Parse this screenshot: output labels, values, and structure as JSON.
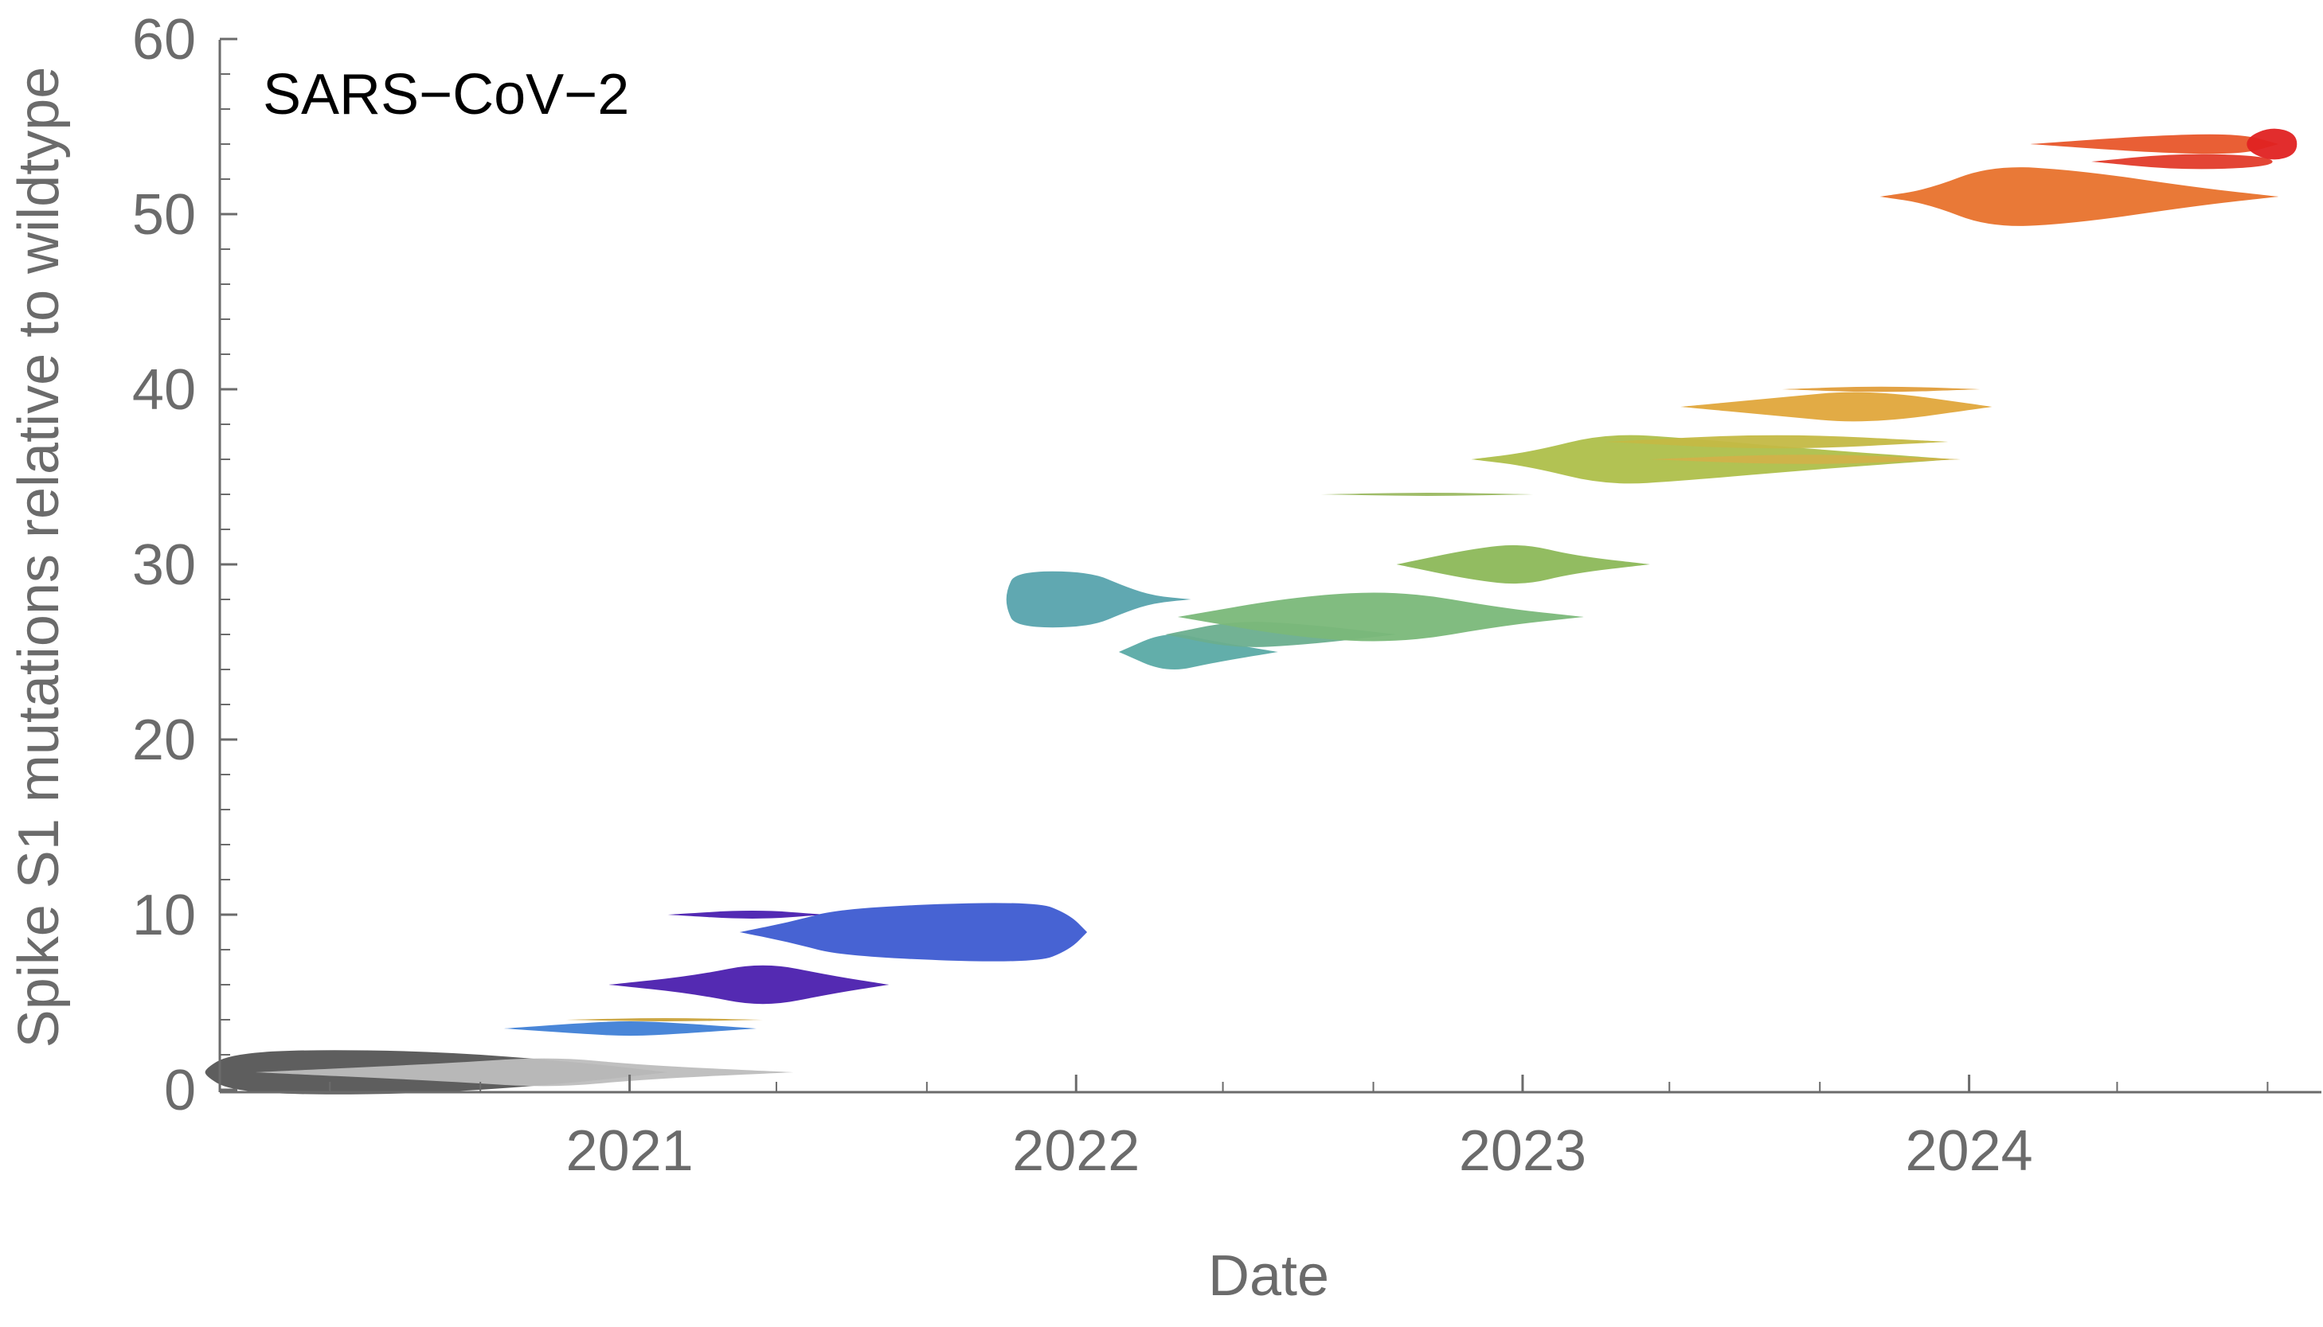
{
  "chart_data": {
    "type": "area",
    "title": "SARS−CoV−2",
    "xlabel": "Date",
    "ylabel": "Spike S1 mutations relative to wildtype",
    "xlim": [
      "2020-02-01",
      "2024-10-15"
    ],
    "ylim": [
      0,
      60
    ],
    "x_ticks": [
      "2021",
      "2022",
      "2023",
      "2024"
    ],
    "y_ticks": [
      0,
      10,
      20,
      30,
      40,
      50,
      60
    ],
    "x_minor_tick_months": 4,
    "y_minor_step": 2,
    "grid": false,
    "legend": "none",
    "series": [
      {
        "start": "2020-01-20",
        "end": "2021-02-01",
        "y": 1,
        "color": "#555555",
        "points": [
          [
            0,
            0.2
          ],
          [
            0.05,
            1.0
          ],
          [
            0.2,
            1.3
          ],
          [
            0.5,
            1.2
          ],
          [
            0.8,
            0.6
          ],
          [
            1,
            0
          ]
        ]
      },
      {
        "start": "2020-03-01",
        "end": "2021-05-15",
        "y": 1,
        "color": "#bdbdbd",
        "points": [
          [
            0,
            0
          ],
          [
            0.35,
            0.5
          ],
          [
            0.55,
            0.9
          ],
          [
            0.72,
            0.4
          ],
          [
            1,
            0
          ]
        ]
      },
      {
        "start": "2020-09-20",
        "end": "2021-04-15",
        "y": 3.5,
        "color": "#3f7fd6",
        "points": [
          [
            0,
            0
          ],
          [
            0.3,
            0.3
          ],
          [
            0.5,
            0.45
          ],
          [
            0.7,
            0.3
          ],
          [
            1,
            0
          ]
        ]
      },
      {
        "start": "2020-11-10",
        "end": "2021-04-20",
        "y": 4,
        "color": "#c9a23a",
        "points": [
          [
            0,
            0
          ],
          [
            0.5,
            0.12
          ],
          [
            1,
            0
          ]
        ]
      },
      {
        "start": "2020-12-15",
        "end": "2021-08-01",
        "y": 6,
        "color": "#4b1fae",
        "points": [
          [
            0,
            0
          ],
          [
            0.3,
            0.5
          ],
          [
            0.55,
            1.3
          ],
          [
            0.8,
            0.5
          ],
          [
            1,
            0
          ]
        ]
      },
      {
        "start": "2021-02-01",
        "end": "2021-06-10",
        "y": 10,
        "color": "#4a1fb0",
        "points": [
          [
            0,
            0
          ],
          [
            0.55,
            0.3
          ],
          [
            1,
            0
          ]
        ]
      },
      {
        "start": "2021-04-01",
        "end": "2022-01-10",
        "y": 9,
        "color": "#3d5bd1",
        "points": [
          [
            0,
            0
          ],
          [
            0.15,
            0.6
          ],
          [
            0.3,
            1.4
          ],
          [
            0.85,
            1.8
          ],
          [
            0.95,
            1.0
          ],
          [
            1,
            0
          ]
        ]
      },
      {
        "start": "2021-11-05",
        "end": "2022-04-05",
        "y": 28,
        "color": "#57a3ad",
        "points": [
          [
            0,
            0.5
          ],
          [
            0.05,
            1.6
          ],
          [
            0.45,
            1.6
          ],
          [
            0.65,
            0.7
          ],
          [
            0.8,
            0.2
          ],
          [
            1,
            0
          ]
        ]
      },
      {
        "start": "2022-02-05",
        "end": "2022-06-15",
        "y": 25,
        "color": "#5aaaa5",
        "points": [
          [
            0,
            0
          ],
          [
            0.3,
            1.2
          ],
          [
            0.6,
            0.6
          ],
          [
            1,
            0
          ]
        ]
      },
      {
        "start": "2022-03-15",
        "end": "2022-09-20",
        "y": 26,
        "color": "#6aae8e",
        "points": [
          [
            0,
            0
          ],
          [
            0.3,
            0.8
          ],
          [
            0.6,
            0.6
          ],
          [
            1,
            0
          ]
        ]
      },
      {
        "start": "2022-03-25",
        "end": "2023-02-20",
        "y": 27,
        "color": "#7ab879",
        "points": [
          [
            0,
            0
          ],
          [
            0.3,
            1.2
          ],
          [
            0.55,
            1.5
          ],
          [
            0.8,
            0.5
          ],
          [
            1,
            0
          ]
        ]
      },
      {
        "start": "2022-09-20",
        "end": "2023-04-15",
        "y": 30,
        "color": "#8cb858",
        "points": [
          [
            0,
            0
          ],
          [
            0.3,
            0.9
          ],
          [
            0.5,
            1.2
          ],
          [
            0.7,
            0.5
          ],
          [
            1,
            0
          ]
        ]
      },
      {
        "start": "2022-07-20",
        "end": "2023-01-10",
        "y": 34,
        "color": "#9ab860",
        "points": [
          [
            0,
            0
          ],
          [
            0.5,
            0.12
          ],
          [
            1,
            0
          ]
        ]
      },
      {
        "start": "2022-11-20",
        "end": "2023-12-20",
        "y": 36,
        "color": "#aebf4a",
        "points": [
          [
            0,
            0
          ],
          [
            0.12,
            0.4
          ],
          [
            0.28,
            1.5
          ],
          [
            0.45,
            1.2
          ],
          [
            0.7,
            0.6
          ],
          [
            1,
            0
          ]
        ]
      },
      {
        "start": "2023-03-10",
        "end": "2023-12-15",
        "y": 37,
        "color": "#c4b945",
        "points": [
          [
            0,
            0
          ],
          [
            0.5,
            0.5
          ],
          [
            1,
            0
          ]
        ]
      },
      {
        "start": "2023-04-15",
        "end": "2023-12-25",
        "y": 36,
        "color": "#d1b24a",
        "points": [
          [
            0,
            0
          ],
          [
            0.5,
            0.35
          ],
          [
            1,
            0
          ]
        ]
      },
      {
        "start": "2023-05-10",
        "end": "2024-01-20",
        "y": 39,
        "color": "#e0a63b",
        "points": [
          [
            0,
            0
          ],
          [
            0.3,
            0.5
          ],
          [
            0.6,
            1.0
          ],
          [
            1,
            0
          ]
        ]
      },
      {
        "start": "2023-08-01",
        "end": "2024-01-10",
        "y": 40,
        "color": "#e09d3a",
        "points": [
          [
            0,
            0
          ],
          [
            0.5,
            0.2
          ],
          [
            1,
            0
          ]
        ]
      },
      {
        "start": "2023-10-20",
        "end": "2024-09-10",
        "y": 51,
        "color": "#e8722c",
        "points": [
          [
            0,
            0
          ],
          [
            0.12,
            0.4
          ],
          [
            0.28,
            1.8
          ],
          [
            0.5,
            1.5
          ],
          [
            0.8,
            0.5
          ],
          [
            1,
            0
          ]
        ]
      },
      {
        "start": "2024-02-20",
        "end": "2024-09-10",
        "y": 54,
        "color": "#e8562a",
        "points": [
          [
            0,
            0
          ],
          [
            0.5,
            0.5
          ],
          [
            0.85,
            0.6
          ],
          [
            1,
            0
          ]
        ]
      },
      {
        "start": "2024-04-10",
        "end": "2024-09-05",
        "y": 53,
        "color": "#e23b2a",
        "points": [
          [
            0,
            0
          ],
          [
            0.5,
            0.5
          ],
          [
            1,
            0.3
          ]
        ]
      },
      {
        "start": "2024-08-15",
        "end": "2024-09-25",
        "y": 54,
        "color": "#e02222",
        "points": [
          [
            0,
            0.4
          ],
          [
            0.5,
            1.0
          ],
          [
            1,
            0.6
          ]
        ]
      }
    ]
  }
}
